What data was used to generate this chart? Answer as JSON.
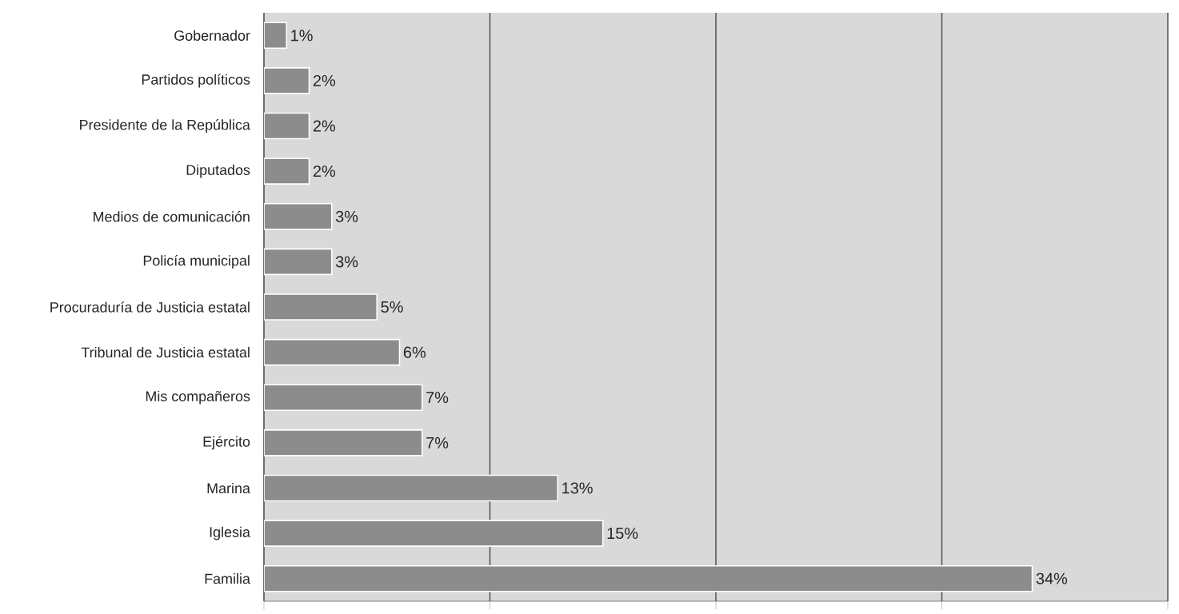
{
  "chart_data": {
    "type": "bar",
    "orientation": "horizontal",
    "categories": [
      "Gobernador",
      "Partidos políticos",
      "Presidente de la República",
      "Diputados",
      "Medios de comunicación",
      "Policía municipal",
      "Procuraduría de Justicia estatal",
      "Tribunal de Justicia estatal",
      "Mis compañeros",
      "Ejército",
      "Marina",
      "Iglesia",
      "Familia"
    ],
    "values": [
      1,
      2,
      2,
      2,
      3,
      3,
      5,
      6,
      7,
      7,
      13,
      15,
      34
    ],
    "value_labels": [
      "1%",
      "2%",
      "2%",
      "2%",
      "3%",
      "3%",
      "5%",
      "6%",
      "7%",
      "7%",
      "13%",
      "15%",
      "34%"
    ],
    "color": "#8c8c8c",
    "xlim": [
      0,
      40
    ],
    "xticks": [
      {
        "value": 0,
        "label": null
      },
      {
        "value": 10,
        "label": null
      },
      {
        "value": 20,
        "label": null
      },
      {
        "value": 30,
        "label": null
      },
      {
        "value": 40,
        "label": null
      }
    ],
    "grid": "x",
    "tick_labels": "y"
  }
}
